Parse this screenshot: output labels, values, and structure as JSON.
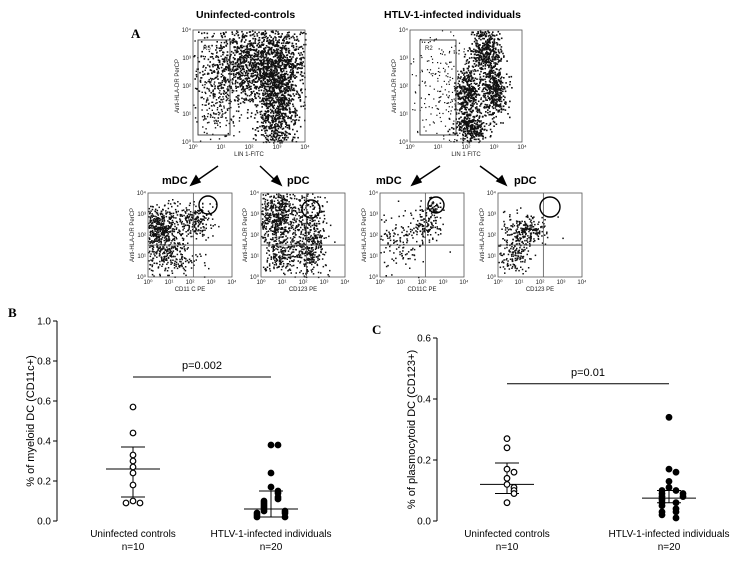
{
  "panel_a": {
    "letter": "A",
    "groups": [
      {
        "title": "Uninfected-controls",
        "gate_label": "R5",
        "x_label": "LIN 1-FITC",
        "y_label": "Anti-HLA-DR PerCP",
        "subplots": [
          {
            "title": "mDC",
            "x_label": "CD11 C PE",
            "y_label": "Anti-HLA-DR PerCP"
          },
          {
            "title": "pDC",
            "x_label": "CD123 PE",
            "y_label": "Anti-HLA-DR PerCP"
          }
        ]
      },
      {
        "title": "HTLV-1-infected individuals",
        "gate_label": "R2",
        "x_label": "LIN 1 FITC",
        "y_label": "Anti-HLA-DR PerCP",
        "subplots": [
          {
            "title": "mDC",
            "x_label": "CD11C PE",
            "y_label": "Anti-HLA-DR PerCP"
          },
          {
            "title": "pDC",
            "x_label": "CD123 PE",
            "y_label": "Anti-HLA-DR PerCP"
          }
        ]
      }
    ],
    "axis_ticks": [
      "10⁰",
      "10¹",
      "10²",
      "10³",
      "10⁴"
    ]
  },
  "chart_data": [
    {
      "panel": "B",
      "type": "scatter",
      "title": "",
      "ylabel": "% of myeloid DC (CD11c+)",
      "ylim": [
        0,
        1.0
      ],
      "yticks": [
        "0.0",
        "0.2",
        "0.4",
        "0.6",
        "0.8",
        "1.0"
      ],
      "categories": [
        "Uninfected controls",
        "HTLV-1-infected individuals"
      ],
      "category_n": [
        "n=10",
        "n=20"
      ],
      "annotation": "p=0.002",
      "series": [
        {
          "name": "Uninfected controls",
          "marker": "open",
          "values": [
            0.57,
            0.44,
            0.33,
            0.3,
            0.27,
            0.24,
            0.18,
            0.1,
            0.09,
            0.09
          ],
          "center": 0.26,
          "low": 0.12,
          "high": 0.37
        },
        {
          "name": "HTLV-1-infected individuals",
          "marker": "filled",
          "values": [
            0.38,
            0.38,
            0.24,
            0.17,
            0.15,
            0.14,
            0.12,
            0.11,
            0.1,
            0.09,
            0.08,
            0.07,
            0.06,
            0.05,
            0.05,
            0.04,
            0.04,
            0.03,
            0.02,
            0.02
          ],
          "center": 0.06,
          "low": 0.02,
          "high": 0.15
        }
      ]
    },
    {
      "panel": "C",
      "type": "scatter",
      "title": "",
      "ylabel": "% of plasmocytoid DC (CD123+)",
      "ylim": [
        0,
        0.6
      ],
      "yticks": [
        "0.0",
        "0.2",
        "0.4",
        "0.6"
      ],
      "categories": [
        "Uninfected controls",
        "HTLV-1-infected individuals"
      ],
      "category_n": [
        "n=10",
        "n=20"
      ],
      "annotation": "p=0.01",
      "series": [
        {
          "name": "Uninfected controls",
          "marker": "open",
          "values": [
            0.27,
            0.24,
            0.17,
            0.16,
            0.14,
            0.12,
            0.11,
            0.1,
            0.09,
            0.06
          ],
          "center": 0.12,
          "low": 0.09,
          "high": 0.19
        },
        {
          "name": "HTLV-1-infected individuals",
          "marker": "filled",
          "values": [
            0.34,
            0.17,
            0.16,
            0.13,
            0.11,
            0.1,
            0.1,
            0.09,
            0.09,
            0.08,
            0.08,
            0.07,
            0.06,
            0.06,
            0.05,
            0.04,
            0.03,
            0.03,
            0.02,
            0.01
          ],
          "center": 0.075,
          "low": 0.06,
          "high": 0.1
        }
      ]
    }
  ]
}
